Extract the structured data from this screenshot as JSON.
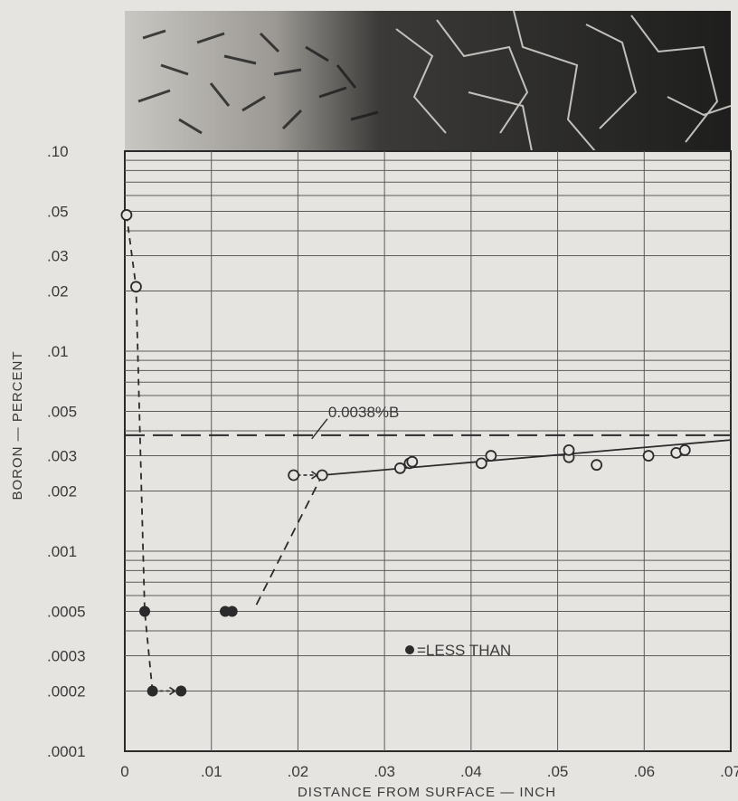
{
  "chart_data": {
    "type": "scatter",
    "title": "",
    "xlabel": "DISTANCE FROM SURFACE — INCH",
    "ylabel": "BORON — PERCENT",
    "xlim": [
      0,
      0.07
    ],
    "ylim": [
      0.0001,
      0.1
    ],
    "yscale": "log",
    "grid": true,
    "x_ticks": [
      {
        "v": 0,
        "label": "0"
      },
      {
        "v": 0.01,
        "label": ".01"
      },
      {
        "v": 0.02,
        "label": ".02"
      },
      {
        "v": 0.03,
        "label": ".03"
      },
      {
        "v": 0.04,
        "label": ".04"
      },
      {
        "v": 0.05,
        "label": ".05"
      },
      {
        "v": 0.06,
        "label": ".06"
      },
      {
        "v": 0.07,
        "label": ".07"
      }
    ],
    "y_ticks": [
      {
        "v": 0.1,
        "label": ".10"
      },
      {
        "v": 0.05,
        "label": ".05"
      },
      {
        "v": 0.03,
        "label": ".03"
      },
      {
        "v": 0.02,
        "label": ".02"
      },
      {
        "v": 0.01,
        "label": ".01"
      },
      {
        "v": 0.005,
        "label": ".005"
      },
      {
        "v": 0.003,
        "label": ".003"
      },
      {
        "v": 0.002,
        "label": ".002"
      },
      {
        "v": 0.001,
        "label": ".001"
      },
      {
        "v": 0.0005,
        "label": ".0005"
      },
      {
        "v": 0.0003,
        "label": ".0003"
      },
      {
        "v": 0.0002,
        "label": ".0002"
      },
      {
        "v": 0.0001,
        "label": ".0001"
      }
    ],
    "open_points": [
      {
        "x": 0.0002,
        "y": 0.048
      },
      {
        "x": 0.0013,
        "y": 0.021
      },
      {
        "x": 0.0195,
        "y": 0.0024
      },
      {
        "x": 0.0228,
        "y": 0.0024
      },
      {
        "x": 0.0318,
        "y": 0.0026
      },
      {
        "x": 0.0329,
        "y": 0.00275
      },
      {
        "x": 0.0332,
        "y": 0.0028
      },
      {
        "x": 0.0412,
        "y": 0.00275
      },
      {
        "x": 0.0423,
        "y": 0.003
      },
      {
        "x": 0.0513,
        "y": 0.00295
      },
      {
        "x": 0.0513,
        "y": 0.0032
      },
      {
        "x": 0.0545,
        "y": 0.0027
      },
      {
        "x": 0.0605,
        "y": 0.003
      },
      {
        "x": 0.0637,
        "y": 0.0031
      },
      {
        "x": 0.0647,
        "y": 0.0032
      }
    ],
    "filled_points": [
      {
        "x": 0.0023,
        "y": 0.0005
      },
      {
        "x": 0.0032,
        "y": 0.0002
      },
      {
        "x": 0.0065,
        "y": 0.0002
      },
      {
        "x": 0.0116,
        "y": 0.0005
      },
      {
        "x": 0.0124,
        "y": 0.0005
      }
    ],
    "dashed_profile": [
      {
        "x": 0.0002,
        "y": 0.048
      },
      {
        "x": 0.0013,
        "y": 0.021
      },
      {
        "x": 0.0023,
        "y": 0.0005
      },
      {
        "x": 0.0032,
        "y": 0.0002
      }
    ],
    "arrow_segments": [
      {
        "x1": 0.0033,
        "y1": 0.0002,
        "x2": 0.0058,
        "y2": 0.0002
      },
      {
        "x1": 0.0199,
        "y1": 0.0024,
        "x2": 0.0222,
        "y2": 0.0024
      }
    ],
    "dashed_rise": [
      {
        "x": 0.0152,
        "y": 0.00054
      },
      {
        "x": 0.0228,
        "y": 0.0024
      }
    ],
    "fit_line": [
      {
        "x": 0.0228,
        "y": 0.0024
      },
      {
        "x": 0.07,
        "y": 0.0036
      }
    ],
    "reference_line": {
      "y": 0.0038,
      "label": "0.0038%B"
    },
    "legend": {
      "label": "=LESS THAN",
      "placement": "lower-center"
    }
  },
  "colors": {
    "background": "#e6e4e0",
    "grid": "#5b5b5b",
    "ink": "#2b2b2b"
  }
}
